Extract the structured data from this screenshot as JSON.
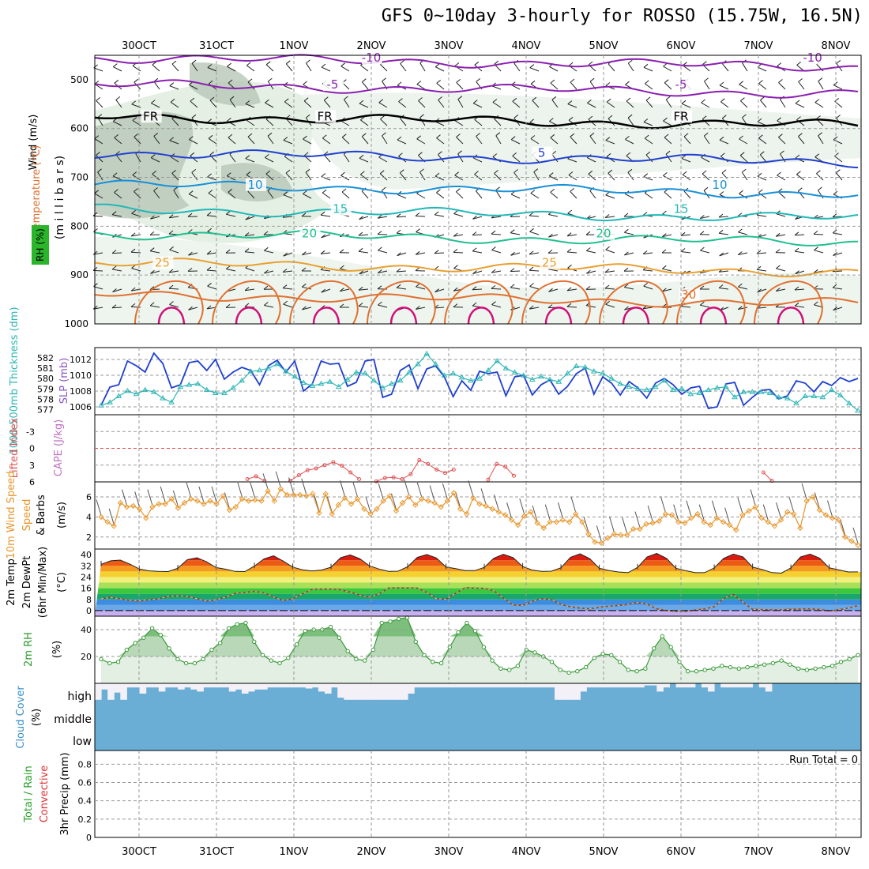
{
  "title": "GFS 0~10day 3-hourly for ROSSO (15.75W, 16.5N)",
  "colors": {
    "grid": "#9a9a9a",
    "rh_fill": "#e5f0e5",
    "rh_fill2": "#b7c7b7",
    "slp": "#1f3fd1",
    "thick": "#2fb6b6",
    "lifted": "#e05050",
    "wind": "#e8962c",
    "temp_dew": "#7a4a2a",
    "rh2m": "#3a9a3a",
    "cloud": "#6aaed6",
    "cloud_bg": "#f4f0f8"
  },
  "chart_data": [
    {
      "type": "line",
      "panel": "upper-air",
      "ylabel_parts": [
        "Wind (m/s)",
        "Temperature (°C)",
        "RH (%)"
      ],
      "yunit": "(m i l l i b a r s)",
      "date_labels": [
        "30OCT",
        "31OCT",
        "1NOV",
        "2NOV",
        "3NOV",
        "4NOV",
        "5NOV",
        "6NOV",
        "7NOV",
        "8NOV"
      ],
      "yticks": [
        500,
        600,
        700,
        800,
        900,
        1000
      ],
      "ylim": [
        450,
        1000
      ],
      "isotherms": [
        {
          "label": "-10",
          "color": "#8a1fb0",
          "level": 455,
          "labels_at": [
            3.0,
            8.7
          ]
        },
        {
          "label": "-5",
          "color": "#8a1fb0",
          "level": 510,
          "labels_at": [
            2.5,
            7.0
          ]
        },
        {
          "label": "FR",
          "color": "#000000",
          "level": 575,
          "labels_at": [
            0.15,
            2.4,
            7.0
          ]
        },
        {
          "label": "5",
          "color": "#2040d0",
          "level": 650,
          "labels_at": [
            5.2
          ]
        },
        {
          "label": "10",
          "color": "#1890d8",
          "level": 715,
          "labels_at": [
            1.5,
            7.5
          ]
        },
        {
          "label": "15",
          "color": "#20b8b8",
          "level": 765,
          "labels_at": [
            2.6,
            7.0
          ]
        },
        {
          "label": "20",
          "color": "#20c090",
          "level": 815,
          "labels_at": [
            2.2,
            6.0
          ]
        },
        {
          "label": "25",
          "color": "#e8a030",
          "level": 875,
          "labels_at": [
            0.3,
            5.3
          ]
        },
        {
          "label": "30",
          "color": "#e07030",
          "level": 940,
          "labels_at": [
            7.1
          ]
        }
      ]
    },
    {
      "type": "line",
      "panel": "slp-thickness",
      "left_label": "1000-500mb Thickness (dm)",
      "right_label": "SLP (mb)",
      "thickness_ticks": [
        577,
        578,
        579,
        580,
        581,
        582
      ],
      "slp_ticks": [
        1006,
        1008,
        1010,
        1012
      ],
      "slp_ylim": [
        1005,
        1013.5
      ],
      "slp": [
        1006.2,
        1008.5,
        1008.8,
        1011.8,
        1011.2,
        1010.4,
        1012.8,
        1011.5,
        1008.4,
        1008.8,
        1011.6,
        1011.8,
        1010.6,
        1012.0,
        1009.5,
        1010.4,
        1011.0,
        1010.6,
        1008.8,
        1011.2,
        1011.9,
        1010.4,
        1011.8,
        1008.0,
        1008.9,
        1011.8,
        1011.4,
        1011.5,
        1008.6,
        1009.1,
        1011.8,
        1012.0,
        1007.2,
        1007.6,
        1010.6,
        1011.3,
        1008.3,
        1010.8,
        1011.2,
        1009.8,
        1007.3,
        1009.3,
        1008.1,
        1010.5,
        1010.2,
        1010.4,
        1007.4,
        1009.8,
        1010.0,
        1007.5,
        1008.8,
        1009.4,
        1007.6,
        1008.6,
        1010.2,
        1010.9,
        1007.6,
        1009.8,
        1009.0,
        1007.5,
        1009.2,
        1008.4,
        1007.1,
        1009.0,
        1009.6,
        1008.8,
        1007.6,
        1008.4,
        1008.6,
        1005.8,
        1006.0,
        1008.9,
        1009.1,
        1006.2,
        1007.2,
        1008.1,
        1008.2,
        1007.0,
        1007.4,
        1009.3,
        1009.0,
        1007.9,
        1009.2,
        1008.7,
        1009.7,
        1009.2,
        1009.6
      ],
      "thickness": [
        577.4,
        577.7,
        578.3,
        578.8,
        578.5,
        578.9,
        578.7,
        578.1,
        577.7,
        579.2,
        579.4,
        579.5,
        578.9,
        578.6,
        578.6,
        579.1,
        579.8,
        580.7,
        580.8,
        581.0,
        581.4,
        580.7,
        580.2,
        579.6,
        579.3,
        579.5,
        579.7,
        579.2,
        579.9,
        580.6,
        580.5,
        579.8,
        579.1,
        579.5,
        579.8,
        580.6,
        581.4,
        582.4,
        581.4,
        580.3,
        580.5,
        580.1,
        579.8,
        580.0,
        580.8,
        581.7,
        581.0,
        580.6,
        580.3,
        579.9,
        580.2,
        579.9,
        579.7,
        580.5,
        581.2,
        581.1,
        580.7,
        580.5,
        580.0,
        579.5,
        579.2,
        579.0,
        578.9,
        579.2,
        579.8,
        578.9,
        579.0,
        578.5,
        578.6,
        578.9,
        579.1,
        579.2,
        578.2,
        578.7,
        578.7,
        578.7,
        578.6,
        578.2,
        578.1,
        577.6,
        578.3,
        578.3,
        578.2,
        578.9,
        578.4,
        577.6,
        576.9
      ]
    },
    {
      "type": "line",
      "panel": "lifted-index",
      "left_label": "Lifted Index",
      "right_label": "CAPE (J/kg)",
      "yticks": [
        -3,
        0,
        3,
        6
      ],
      "ylim": [
        -6,
        6
      ],
      "segments": [
        {
          "x0": 17,
          "values": [
            5.5,
            5.0,
            5.8
          ]
        },
        {
          "x0": 22,
          "values": [
            5.8,
            4.8,
            3.9,
            3.6,
            3.0,
            2.5,
            3.1,
            4.3,
            5.5
          ]
        },
        {
          "x0": 32,
          "values": [
            5.9,
            5.3,
            5.2,
            5.5,
            4.6,
            2.1,
            2.8,
            3.8,
            4.4,
            3.8
          ]
        },
        {
          "x0": 45,
          "values": [
            5.6,
            2.8,
            3.3,
            4.9
          ]
        },
        {
          "x0": 77,
          "values": [
            4.3,
            5.8
          ]
        }
      ]
    },
    {
      "type": "line",
      "panel": "wind10m",
      "left_label": "10m Wind Speed",
      "right_label": "& Barbs",
      "yunit": "(m/s)",
      "yticks": [
        2,
        4,
        6
      ],
      "ylim": [
        0.8,
        7.5
      ],
      "values": [
        4.0,
        3.5,
        3.1,
        5.4,
        5.0,
        5.1,
        4.8,
        3.9,
        5.0,
        5.3,
        5.3,
        5.8,
        4.9,
        5.4,
        5.8,
        5.6,
        5.3,
        5.6,
        5.3,
        6.1,
        4.7,
        5.0,
        5.8,
        5.6,
        5.7,
        5.6,
        6.6,
        5.6,
        6.8,
        6.2,
        6.2,
        6.2,
        6.1,
        6.3,
        4.4,
        6.3,
        4.3,
        5.2,
        5.9,
        5.3,
        5.8,
        4.8,
        4.3,
        4.8,
        5.6,
        6.1,
        4.6,
        5.4,
        6.0,
        5.2,
        5.8,
        5.6,
        5.4,
        5.0,
        5.6,
        6.4,
        4.8,
        4.3,
        5.9,
        5.3,
        5.1,
        4.8,
        4.5,
        4.2,
        3.7,
        3.2,
        4.1,
        4.5,
        3.4,
        2.9,
        3.5,
        3.5,
        3.7,
        3.5,
        4.3,
        3.5,
        2.3,
        1.5,
        1.4,
        1.9,
        2.3,
        2.2,
        2.2,
        2.8,
        2.8,
        3.3,
        3.4,
        3.6,
        4.3,
        4.2,
        3.5,
        3.4,
        3.9,
        4.3,
        3.5,
        3.2,
        3.9,
        3.5,
        3.2,
        2.7,
        4.2,
        4.6,
        5.0,
        3.9,
        3.5,
        3.1,
        3.7,
        4.5,
        4.3,
        2.9,
        5.6,
        6.0,
        4.7,
        4.2,
        3.9,
        3.7,
        2.0,
        1.6,
        1.2
      ]
    },
    {
      "type": "area",
      "panel": "temp2m",
      "left_label": "2m Temp",
      "left_label2": "2m DewPt",
      "left_label3": "(6hr Min/Max)",
      "yunit": "(°C)",
      "yticks": [
        0,
        8,
        16,
        24,
        32,
        40
      ],
      "ylim": [
        -4,
        44
      ],
      "temp": [
        33.1,
        35.6,
        36.1,
        33.2,
        29.7,
        28.4,
        28.0,
        27.9,
        30.2,
        36.4,
        37.8,
        34.9,
        30.8,
        29.6,
        28.0,
        27.9,
        31.8,
        37.0,
        39.2,
        35.4,
        31.1,
        29.2,
        28.3,
        29.0,
        31.0,
        37.8,
        39.8,
        37.1,
        32.1,
        29.7,
        28.1,
        28.2,
        31.4,
        38.0,
        40.1,
        37.6,
        31.1,
        30.0,
        28.6,
        28.6,
        30.9,
        37.5,
        40.3,
        37.9,
        31.5,
        29.0,
        28.0,
        28.2,
        30.6,
        38.1,
        40.6,
        37.1,
        30.3,
        28.7,
        27.6,
        27.1,
        30.9,
        38.4,
        40.9,
        37.4,
        30.3,
        28.6,
        27.1,
        27.2,
        30.5,
        37.4,
        40.4,
        38.4,
        31.1,
        29.4,
        27.2,
        26.8,
        30.5,
        38.3,
        40.4,
        37.5,
        30.6,
        29.1,
        27.6,
        27.7
      ],
      "dewpt": [
        8.5,
        9.4,
        8.5,
        7.3,
        6.9,
        7.8,
        8.4,
        10.2,
        10.6,
        10.1,
        8.6,
        6.8,
        7.8,
        9.6,
        12.4,
        13.0,
        13.8,
        12.8,
        9.7,
        7.2,
        8.5,
        12.0,
        15.1,
        15.4,
        15.3,
        14.9,
        13.2,
        11.0,
        9.6,
        11.8,
        16.2,
        16.3,
        16.2,
        16.1,
        13.0,
        8.6,
        8.1,
        12.3,
        16.4,
        16.1,
        15.9,
        14.2,
        8.9,
        4.0,
        3.6,
        6.6,
        8.6,
        7.8,
        4.4,
        2.7,
        1.8,
        1.3,
        2.4,
        3.2,
        3.6,
        4.4,
        5.9,
        4.6,
        1.3,
        0.1,
        -0.6,
        -0.6,
        0.4,
        1.2,
        2.8,
        8.8,
        11.5,
        6.1,
        0.9,
        0.7,
        0.5,
        0.6,
        0.9,
        1.1,
        1.3,
        0.8,
        -0.3,
        0.6,
        1.8,
        3.6
      ]
    },
    {
      "type": "area",
      "panel": "rh2m",
      "left_label": "2m RH",
      "yunit": "(%)",
      "yticks": [
        20,
        40
      ],
      "ylim": [
        0,
        50
      ],
      "values": [
        18,
        15,
        16,
        25,
        30,
        34,
        41,
        36,
        26,
        18,
        15,
        15,
        18,
        25,
        30,
        41,
        44,
        45,
        31,
        21,
        17,
        15,
        19,
        29,
        39,
        40,
        40,
        42,
        34,
        24,
        18,
        17,
        25,
        45,
        46,
        48,
        49,
        31,
        21,
        16,
        15,
        27,
        38,
        45,
        39,
        27,
        17,
        11,
        10,
        13,
        25,
        23,
        20,
        16,
        10,
        8,
        9,
        12,
        19,
        22,
        21,
        16,
        10,
        9,
        11,
        26,
        35,
        27,
        16,
        9,
        9,
        10,
        11,
        13,
        12,
        11,
        12,
        13,
        14,
        15,
        17,
        14,
        11,
        10,
        11,
        12,
        13,
        16,
        18,
        21
      ]
    },
    {
      "type": "bar",
      "panel": "cloud",
      "left_label": "Cloud Cover",
      "yunit": "(%)",
      "level_labels": [
        "high",
        "middle",
        "low"
      ],
      "high_pct": [
        20,
        70,
        20,
        55,
        20,
        80,
        80,
        50,
        80,
        80,
        60,
        80,
        80,
        70,
        80,
        70,
        60,
        80,
        80,
        80,
        80,
        60,
        70,
        50,
        60,
        70,
        70,
        80,
        80,
        80,
        80,
        80,
        80,
        75,
        80,
        60,
        50,
        80,
        30,
        20,
        20,
        20,
        20,
        20,
        20,
        20,
        20,
        20,
        20,
        50,
        80,
        80,
        80,
        80,
        80,
        80,
        80,
        80,
        80,
        80,
        80,
        80,
        80,
        80,
        80,
        80,
        80,
        80,
        80,
        80,
        80,
        80,
        20,
        20,
        20,
        20,
        60,
        80,
        80,
        80,
        80,
        80,
        80,
        80,
        80,
        80,
        90,
        90,
        60,
        80,
        100,
        80,
        80,
        80,
        100,
        80,
        60,
        100,
        80,
        80,
        80,
        80,
        80,
        100,
        80,
        60,
        100,
        100,
        100,
        100,
        100,
        100,
        100,
        100,
        100,
        100,
        100,
        100,
        100,
        100,
        100,
        100,
        100,
        100,
        100,
        100,
        100,
        100,
        100,
        100,
        100,
        100,
        100,
        100,
        100,
        100,
        100,
        100,
        100,
        100,
        100,
        100,
        100,
        100,
        100,
        100,
        100,
        100,
        100,
        100,
        100,
        100,
        100,
        100,
        100,
        100,
        100,
        100,
        100,
        100,
        100,
        100,
        100,
        100,
        100,
        100,
        100,
        100,
        100,
        100,
        100,
        100,
        100,
        100,
        100,
        100,
        100,
        100,
        100,
        100,
        100,
        100,
        100,
        100,
        100,
        100,
        20,
        60,
        80
      ]
    },
    {
      "type": "bar",
      "panel": "precip",
      "left_label": "Total / Rain",
      "left_label2": "Convective",
      "yunit": "3hr Precip (mm)",
      "run_total": "Run Total = 0",
      "yticks": [
        0,
        0.2,
        0.4,
        0.6,
        0.8
      ],
      "ylim": [
        0,
        0.95
      ],
      "values": []
    }
  ]
}
